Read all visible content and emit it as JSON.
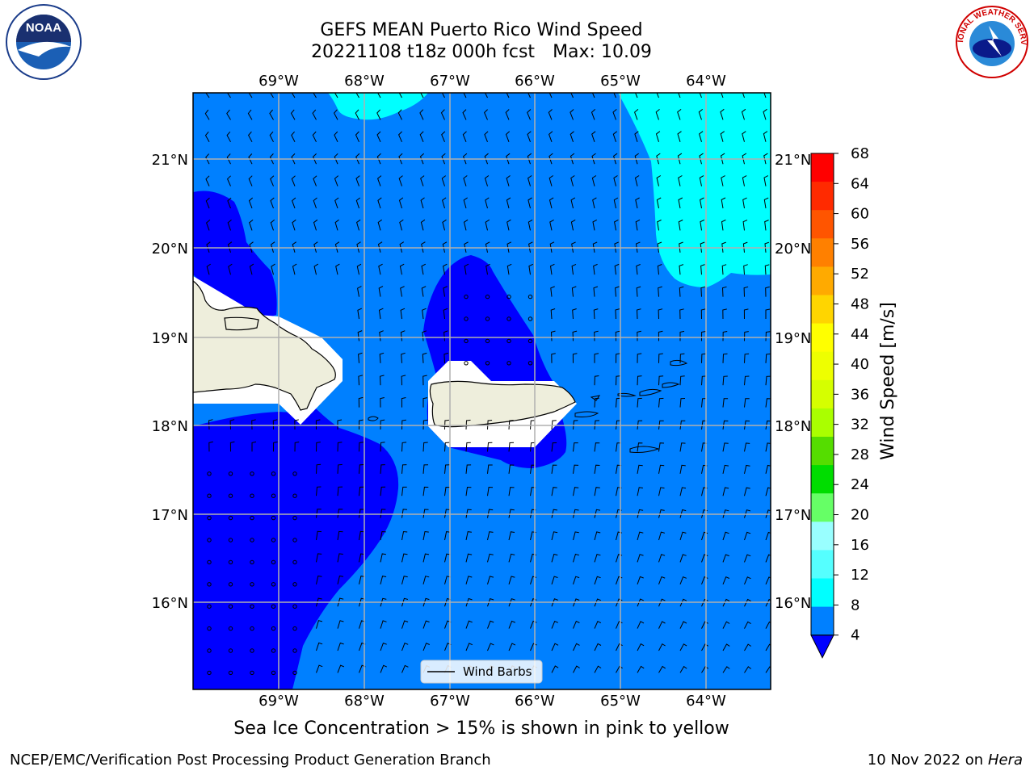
{
  "title": {
    "line1": "GEFS MEAN Puerto Rico Wind Speed",
    "line2": "20221108 t18z 000h fcst",
    "max": "Max: 10.09"
  },
  "lon_ticks": [
    "69°W",
    "68°W",
    "67°W",
    "66°W",
    "65°W",
    "64°W"
  ],
  "lat_ticks": [
    "21°N",
    "20°N",
    "19°N",
    "18°N",
    "17°N",
    "16°N"
  ],
  "legend": {
    "label": "Wind Barbs"
  },
  "colorbar": {
    "label": "Wind Speed [m/s]",
    "ticks": [
      "68",
      "64",
      "60",
      "56",
      "52",
      "48",
      "44",
      "40",
      "36",
      "32",
      "28",
      "24",
      "20",
      "16",
      "12",
      "8",
      "4"
    ],
    "colors": [
      "#ff0000",
      "#ff2a00",
      "#ff5500",
      "#ff8000",
      "#ffaa00",
      "#ffd500",
      "#ffff00",
      "#eeff00",
      "#d5ff00",
      "#aaff00",
      "#55dd00",
      "#00dd00",
      "#66ff66",
      "#99ffff",
      "#55ffff",
      "#00ffff",
      "#0080ff"
    ],
    "under_color": "#0000ff"
  },
  "map_colors": {
    "dark": "#0000ff",
    "mid": "#0080ff",
    "light": "#00ffff",
    "land": "#eeeedc",
    "grid": "#b0b0b0"
  },
  "caption": "Sea Ice Concentration > 15% is shown in pink to yellow",
  "footer": {
    "org": "NCEP/EMC/Verification Post Processing Product Generation Branch",
    "date": "10 Nov 2022 on",
    "host": "Hera"
  },
  "logos": {
    "left": "NOAA",
    "right": "NATIONAL WEATHER SERVICE"
  }
}
